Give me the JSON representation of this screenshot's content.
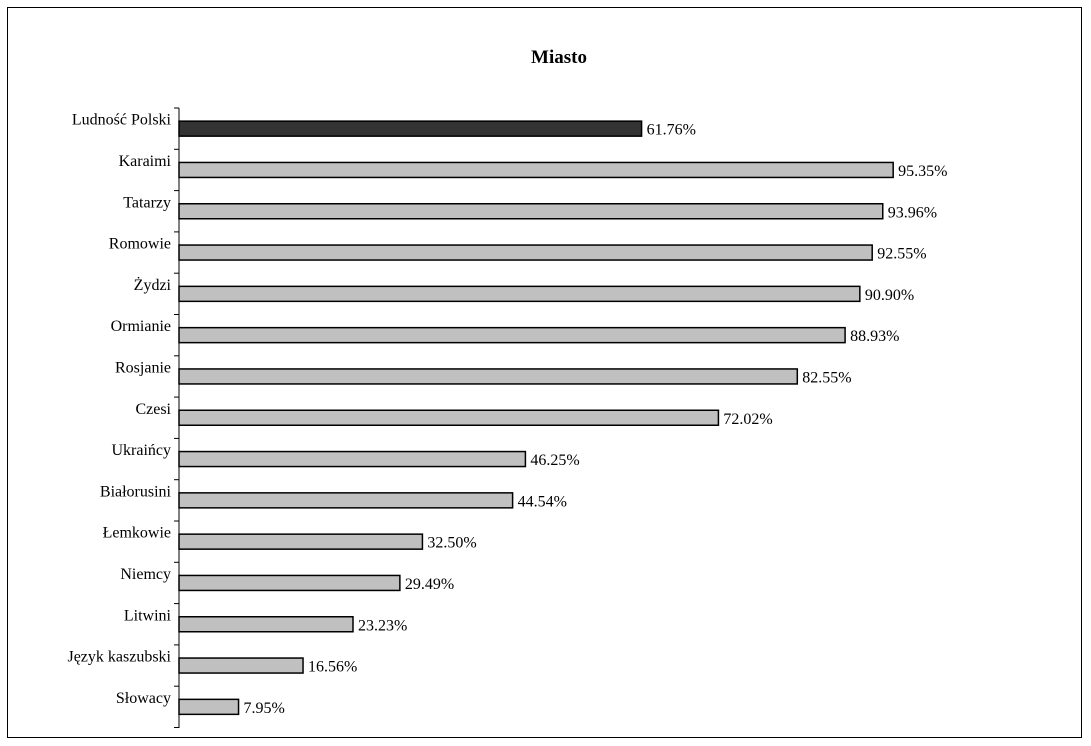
{
  "chart_data": {
    "type": "bar",
    "orientation": "horizontal",
    "title": "Miasto",
    "xlabel": "",
    "ylabel": "",
    "grid": false,
    "legend": "none",
    "value_suffix": "%",
    "categories": [
      "Ludność Polski",
      "Karaimi",
      "Tatarzy",
      "Romowie",
      "Żydzi",
      "Ormianie",
      "Rosjanie",
      "Czesi",
      "Ukraińcy",
      "Białorusini",
      "Łemkowie",
      "Niemcy",
      "Litwini",
      "Język kaszubski",
      "Słowacy"
    ],
    "values": [
      61.76,
      95.35,
      93.96,
      92.55,
      90.9,
      88.93,
      82.55,
      72.02,
      46.25,
      44.54,
      32.5,
      29.49,
      23.23,
      16.56,
      7.95
    ],
    "value_labels": [
      "61.76%",
      "95.35%",
      "93.96%",
      "92.55%",
      "90.90%",
      "88.93%",
      "82.55%",
      "72.02%",
      "46.25%",
      "44.54%",
      "32.50%",
      "29.49%",
      "23.23%",
      "16.56%",
      "7.95%"
    ],
    "highlight_index": 0,
    "colors": {
      "highlight_bar": "#333333",
      "bar": "#c0c0c0",
      "bar_stroke": "#000000",
      "axis": "#000000"
    }
  }
}
